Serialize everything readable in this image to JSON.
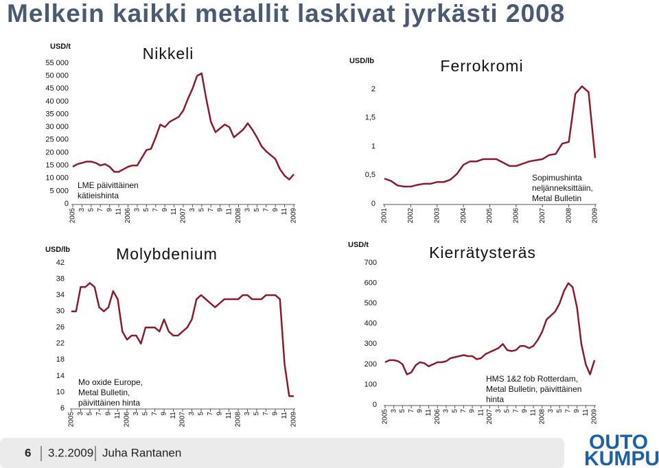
{
  "title": "Melkein kaikki metallit laskivat jyrkästi 2008",
  "footer": {
    "page": "6",
    "date": "3.2.2009",
    "author": "Juha Rantanen",
    "logo": [
      "OUTO",
      "KUMPU"
    ]
  },
  "chart_data": [
    {
      "type": "line",
      "title": "Nikkeli",
      "ylabel": "USD/t",
      "annotation": [
        "LME päivittäinen",
        "kätieishinta"
      ],
      "color": "#8b1a2b",
      "categories": [
        "2005",
        null,
        "3",
        null,
        "5",
        null,
        "7",
        null,
        "9",
        null,
        "11",
        null,
        "2006",
        null,
        "3",
        null,
        "5",
        null,
        "7",
        null,
        "9",
        null,
        "11",
        null,
        "2007",
        null,
        "3",
        null,
        "5",
        null,
        "7",
        null,
        "9",
        null,
        "11",
        null,
        "2008",
        null,
        "3",
        null,
        "5",
        null,
        "7",
        null,
        "9",
        null,
        "11",
        null,
        "2009"
      ],
      "values": [
        14500,
        15500,
        16000,
        16500,
        16500,
        16000,
        15000,
        15500,
        14500,
        12500,
        12500,
        13500,
        14500,
        15000,
        15000,
        18000,
        21000,
        21500,
        26000,
        31000,
        30000,
        32000,
        33000,
        34000,
        36500,
        41000,
        45000,
        50000,
        51000,
        41000,
        32000,
        28000,
        29500,
        31000,
        30000,
        26000,
        27500,
        29000,
        31500,
        29000,
        26000,
        22500,
        20500,
        19000,
        17500,
        13500,
        11000,
        9500,
        11500
      ],
      "ylim": [
        0,
        55000
      ],
      "yticks": [
        0,
        {
          "value": 5000,
          "label": "5 000"
        },
        {
          "value": 10000,
          "label": "10 000"
        },
        {
          "value": 15000,
          "label": "15 000"
        },
        {
          "value": 20000,
          "label": "20 000"
        },
        {
          "value": 25000,
          "label": "25 000"
        },
        {
          "value": 30000,
          "label": "30 000"
        },
        {
          "value": 35000,
          "label": "35 000"
        },
        {
          "value": 40000,
          "label": "40 000"
        },
        {
          "value": 45000,
          "label": "45 000"
        },
        {
          "value": 50000,
          "label": "50 000"
        },
        {
          "value": 55000,
          "label": "55 000"
        }
      ]
    },
    {
      "type": "line",
      "title": "Ferrokromi",
      "ylabel": "USD/lb",
      "annotation": [
        "Sopimushinta",
        "neljänneksittäiin,",
        "Metal Bulletin"
      ],
      "color": "#8b1a2b",
      "categories": [
        "2001",
        null,
        null,
        null,
        "2002",
        null,
        null,
        null,
        "2003",
        null,
        null,
        null,
        "2004",
        null,
        null,
        null,
        "2005",
        null,
        null,
        null,
        "2006",
        null,
        null,
        null,
        "2007",
        null,
        null,
        null,
        "2008",
        null,
        null,
        null,
        "2009"
      ],
      "values": [
        0.44,
        0.4,
        0.32,
        0.3,
        0.3,
        0.33,
        0.35,
        0.35,
        0.38,
        0.38,
        0.42,
        0.52,
        0.68,
        0.74,
        0.74,
        0.78,
        0.78,
        0.78,
        0.72,
        0.66,
        0.66,
        0.7,
        0.74,
        0.76,
        0.78,
        0.85,
        0.87,
        1.05,
        1.08,
        1.92,
        2.05,
        1.95,
        0.8
      ],
      "ylim": [
        0,
        2
      ],
      "yticks": [
        0,
        {
          "value": 0.5,
          "label": "0,5"
        },
        1,
        {
          "value": 1.5,
          "label": "1,5"
        },
        2
      ]
    },
    {
      "type": "line",
      "title": "Molybdenium",
      "ylabel": "USD/lb",
      "annotation": [
        "Mo oxide Europe,",
        "Metal Bulletin,",
        "päivittäinen hinta"
      ],
      "color": "#8b1a2b",
      "categories": [
        "2005",
        null,
        "3",
        null,
        "5",
        null,
        "7",
        null,
        "9",
        null,
        "11",
        null,
        "2006",
        null,
        "3",
        null,
        "5",
        null,
        "7",
        null,
        "9",
        null,
        "11",
        null,
        "2007",
        null,
        "3",
        null,
        "5",
        null,
        "7",
        null,
        "9",
        null,
        "11",
        null,
        "2008",
        null,
        "3",
        null,
        "5",
        null,
        "7",
        null,
        "9",
        null,
        "11",
        null,
        "2009"
      ],
      "values": [
        30,
        30,
        36,
        36,
        37,
        36,
        31,
        30,
        31,
        35,
        33,
        25,
        23,
        24,
        24,
        22,
        26,
        26,
        26,
        25,
        28,
        25,
        24,
        24,
        25,
        26,
        28,
        33,
        34,
        33,
        32,
        31,
        32,
        33,
        33,
        33,
        33,
        34,
        34,
        33,
        33,
        33,
        34,
        34,
        34,
        33,
        17,
        9,
        9
      ],
      "ylim": [
        6,
        42
      ],
      "yticks": [
        6,
        10,
        14,
        18,
        22,
        26,
        30,
        34,
        38,
        42
      ]
    },
    {
      "type": "line",
      "title": "Kierrätysteräs",
      "ylabel": "USD/t",
      "annotation": [
        "HMS 1&2 fob Rotterdam,",
        "Metal Bulletin, päivittäinen",
        "hinta"
      ],
      "color": "#8b1a2b",
      "categories": [
        "2005",
        null,
        "3",
        null,
        "5",
        null,
        "7",
        null,
        "9",
        null,
        "11",
        null,
        "2006",
        null,
        "3",
        null,
        "5",
        null,
        "7",
        null,
        "9",
        null,
        "11",
        null,
        "2007",
        null,
        "3",
        null,
        "5",
        null,
        "7",
        null,
        "9",
        null,
        "11",
        null,
        "2008",
        null,
        "3",
        null,
        "5",
        null,
        "7",
        null,
        "9",
        null,
        "11",
        null,
        "2009"
      ],
      "values": [
        210,
        220,
        220,
        215,
        200,
        150,
        160,
        195,
        210,
        205,
        190,
        200,
        210,
        210,
        215,
        230,
        235,
        240,
        245,
        240,
        240,
        225,
        230,
        250,
        260,
        270,
        280,
        300,
        270,
        265,
        270,
        290,
        290,
        280,
        290,
        320,
        360,
        420,
        440,
        460,
        500,
        560,
        600,
        580,
        480,
        300,
        200,
        150,
        220
      ],
      "ylim": [
        0,
        700
      ],
      "yticks": [
        0,
        100,
        200,
        300,
        400,
        500,
        600,
        700
      ]
    }
  ]
}
